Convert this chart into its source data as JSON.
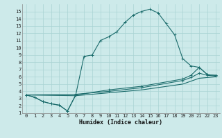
{
  "xlabel": "Humidex (Indice chaleur)",
  "bg_color": "#cdeaea",
  "grid_color": "#aad4d4",
  "line_color": "#1a6b6b",
  "xlim": [
    -0.5,
    23.5
  ],
  "ylim": [
    1,
    16
  ],
  "xticks": [
    0,
    1,
    2,
    3,
    4,
    5,
    6,
    7,
    8,
    9,
    10,
    11,
    12,
    13,
    14,
    15,
    16,
    17,
    18,
    19,
    20,
    21,
    22,
    23
  ],
  "yticks": [
    1,
    2,
    3,
    4,
    5,
    6,
    7,
    8,
    9,
    10,
    11,
    12,
    13,
    14,
    15
  ],
  "series1": [
    [
      0,
      3.5
    ],
    [
      1,
      3.2
    ],
    [
      2,
      2.6
    ],
    [
      3,
      2.3
    ],
    [
      4,
      2.1
    ],
    [
      5,
      1.3
    ],
    [
      6,
      3.5
    ],
    [
      7,
      8.8
    ],
    [
      8,
      9.0
    ],
    [
      9,
      11.0
    ],
    [
      10,
      11.5
    ],
    [
      11,
      12.2
    ],
    [
      12,
      13.5
    ],
    [
      13,
      14.5
    ],
    [
      14,
      15.0
    ],
    [
      15,
      15.3
    ],
    [
      16,
      14.8
    ],
    [
      17,
      13.3
    ],
    [
      18,
      11.8
    ],
    [
      19,
      8.5
    ],
    [
      20,
      7.5
    ],
    [
      21,
      7.3
    ],
    [
      22,
      6.3
    ],
    [
      23,
      6.2
    ]
  ],
  "series2": [
    [
      0,
      3.5
    ],
    [
      1,
      3.2
    ],
    [
      2,
      2.6
    ],
    [
      3,
      2.3
    ],
    [
      4,
      2.1
    ],
    [
      5,
      1.3
    ],
    [
      6,
      3.5
    ],
    [
      10,
      4.2
    ],
    [
      14,
      4.7
    ],
    [
      19,
      5.7
    ],
    [
      20,
      6.2
    ],
    [
      21,
      7.3
    ],
    [
      22,
      6.3
    ],
    [
      23,
      6.2
    ]
  ],
  "series3": [
    [
      0,
      3.5
    ],
    [
      6,
      3.6
    ],
    [
      10,
      4.0
    ],
    [
      14,
      4.5
    ],
    [
      19,
      5.5
    ],
    [
      20,
      5.9
    ],
    [
      21,
      6.5
    ],
    [
      22,
      6.2
    ],
    [
      23,
      6.1
    ]
  ],
  "series4": [
    [
      0,
      3.5
    ],
    [
      6,
      3.4
    ],
    [
      10,
      3.8
    ],
    [
      14,
      4.2
    ],
    [
      19,
      5.0
    ],
    [
      21,
      5.8
    ],
    [
      22,
      5.9
    ],
    [
      23,
      6.0
    ]
  ]
}
